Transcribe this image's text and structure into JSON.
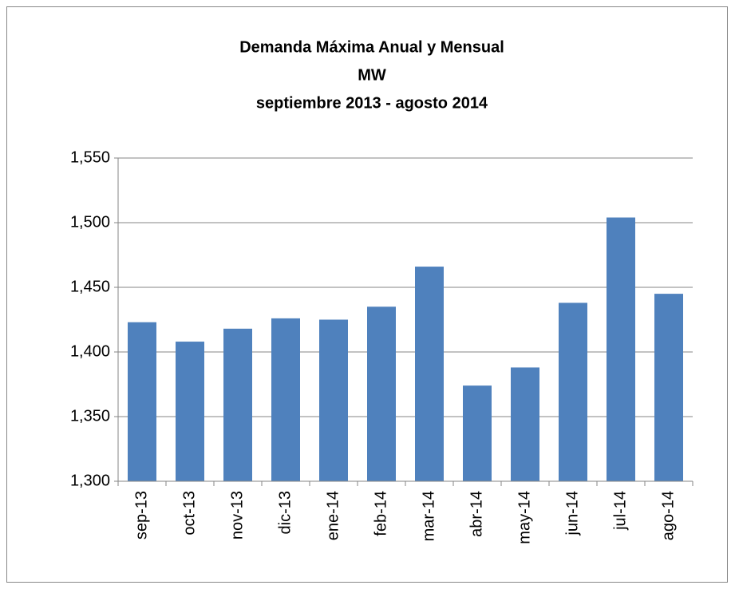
{
  "chart_data": {
    "type": "bar",
    "title": [
      "Demanda Máxima Anual y Mensual",
      "MW",
      "septiembre  2013  -  agosto  2014"
    ],
    "categories": [
      "sep-13",
      "oct-13",
      "nov-13",
      "dic-13",
      "ene-14",
      "feb-14",
      "mar-14",
      "abr-14",
      "may-14",
      "jun-14",
      "jul-14",
      "ago-14"
    ],
    "values": [
      1423,
      1408,
      1418,
      1426,
      1425,
      1435,
      1466,
      1374,
      1388,
      1438,
      1504,
      1445
    ],
    "color": "#4f81bd",
    "ylim": [
      1300,
      1550
    ],
    "yticks": [
      {
        "value": 1300,
        "label": "1,300"
      },
      {
        "value": 1350,
        "label": "1,350"
      },
      {
        "value": 1400,
        "label": "1,400"
      },
      {
        "value": 1450,
        "label": "1,450"
      },
      {
        "value": 1500,
        "label": "1,500"
      },
      {
        "value": 1550,
        "label": "1,550"
      }
    ],
    "grid": true
  }
}
